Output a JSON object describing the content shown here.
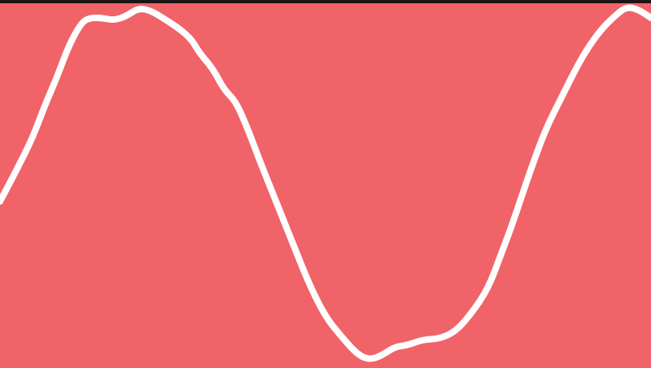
{
  "colors": {
    "background": "#f06368",
    "stroke": "#ffffff",
    "top_bar": "#1e1414"
  },
  "drawing": {
    "shape": "wavy-line"
  }
}
